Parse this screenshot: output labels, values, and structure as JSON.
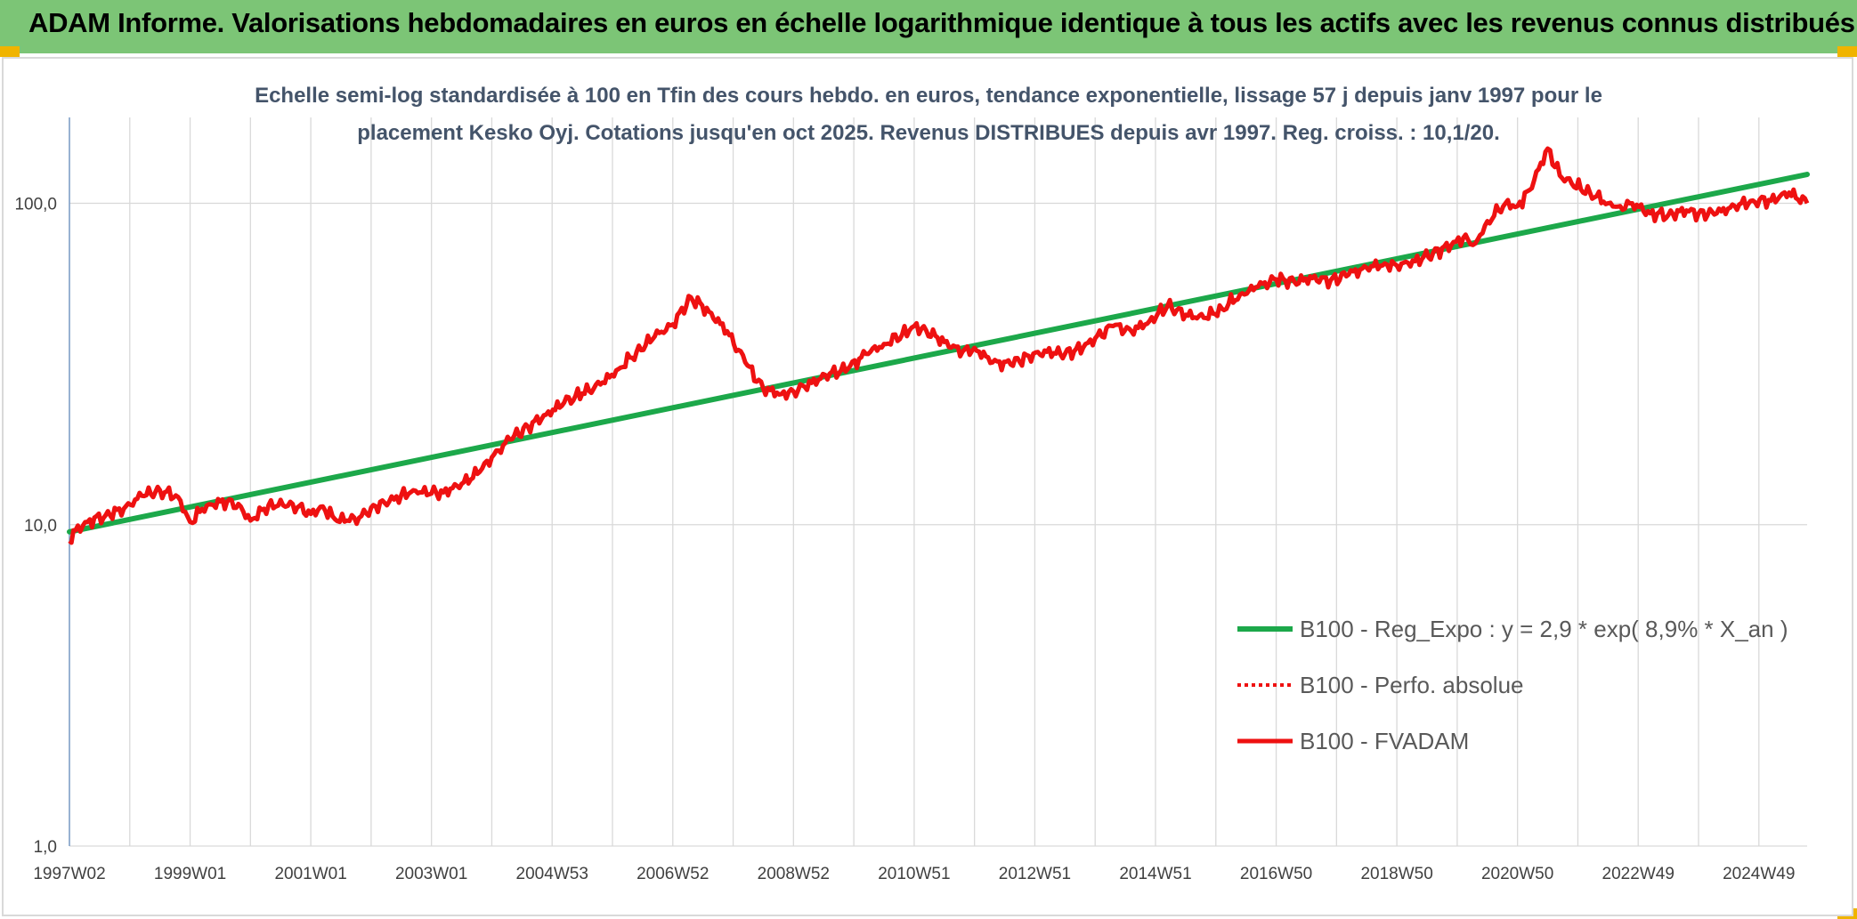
{
  "header": {
    "title": "ADAM Informe. Valorisations hebdomadaires en euros en échelle logarithmique identique à tous les actifs avec les revenus connus distribués"
  },
  "colors": {
    "header_bg": "#7cc576",
    "regression": "#1ca84a",
    "fvadam": "#ee1111",
    "perf_absolue": "#ee1111",
    "title_text": "#44546a"
  },
  "chart_data": {
    "type": "line",
    "title_lines": [
      "Echelle semi-log standardisée à 100 en Tfin des cours hebdo. en euros, tendance exponentielle, lissage 57 j depuis janv 1997 pour le",
      "placement Kesko Oyj. Cotations jusqu'en oct 2025. Revenus DISTRIBUES depuis avr 1997. Reg. croiss. : 10,1/20."
    ],
    "y_scale": "log",
    "ylim": [
      1,
      185
    ],
    "y_ticks": [
      {
        "value": 1,
        "label": "1,0"
      },
      {
        "value": 10,
        "label": "10,0"
      },
      {
        "value": 100,
        "label": "100,0"
      }
    ],
    "xlim": [
      1997.0,
      2025.8
    ],
    "x_ticks": [
      {
        "label": "1997W02",
        "x": 1997.0
      },
      {
        "label": "1999W01",
        "x": 1999.0
      },
      {
        "label": "2001W01",
        "x": 2001.0
      },
      {
        "label": "2003W01",
        "x": 2003.0
      },
      {
        "label": "2004W53",
        "x": 2005.0
      },
      {
        "label": "2006W52",
        "x": 2007.0
      },
      {
        "label": "2008W52",
        "x": 2009.0
      },
      {
        "label": "2010W51",
        "x": 2011.0
      },
      {
        "label": "2012W51",
        "x": 2013.0
      },
      {
        "label": "2014W51",
        "x": 2015.0
      },
      {
        "label": "2016W50",
        "x": 2017.0
      },
      {
        "label": "2018W50",
        "x": 2019.0
      },
      {
        "label": "2020W50",
        "x": 2021.0
      },
      {
        "label": "2022W49",
        "x": 2023.0
      },
      {
        "label": "2024W49",
        "x": 2025.0
      }
    ],
    "legend_position": "right",
    "grid": true,
    "series": [
      {
        "name": "B100 - Reg_Expo : y = 2,9 * exp( 8,9% *  X_an )",
        "style": "solid",
        "x": [
          1997.0,
          2025.8
        ],
        "y": [
          9.5,
          123
        ]
      },
      {
        "name": "B100 - Perfo. absolue",
        "style": "dotted",
        "x": [],
        "y": []
      },
      {
        "name": "B100 - FVADAM",
        "style": "solid",
        "x": [
          1997.0,
          1997.1,
          1997.3,
          1997.6,
          1997.9,
          1998.2,
          1998.5,
          1998.8,
          1999.0,
          1999.2,
          1999.5,
          1999.8,
          2000.0,
          2000.3,
          2000.7,
          2001.0,
          2001.2,
          2001.4,
          2001.6,
          2001.8,
          2002.0,
          2002.3,
          2002.7,
          2003.0,
          2003.2,
          2003.5,
          2003.8,
          2004.0,
          2004.3,
          2004.6,
          2004.9,
          2005.2,
          2005.5,
          2005.8,
          2006.1,
          2006.4,
          2006.7,
          2007.0,
          2007.3,
          2007.6,
          2007.9,
          2008.2,
          2008.5,
          2008.8,
          2009.0,
          2009.3,
          2009.6,
          2009.9,
          2010.2,
          2010.5,
          2010.8,
          2011.0,
          2011.2,
          2011.5,
          2011.8,
          2012.0,
          2012.3,
          2012.6,
          2012.9,
          2013.2,
          2013.5,
          2013.8,
          2014.0,
          2014.3,
          2014.6,
          2014.9,
          2015.2,
          2015.5,
          2015.8,
          2016.1,
          2016.4,
          2016.7,
          2017.0,
          2017.3,
          2017.6,
          2017.9,
          2018.2,
          2018.5,
          2018.8,
          2019.0,
          2019.3,
          2019.6,
          2019.9,
          2020.1,
          2020.3,
          2020.5,
          2020.8,
          2021.0,
          2021.2,
          2021.5,
          2021.7,
          2021.9,
          2022.2,
          2022.5,
          2022.7,
          2022.9,
          2023.2,
          2023.5,
          2023.8,
          2024.0,
          2024.3,
          2024.6,
          2024.9,
          2025.2,
          2025.5,
          2025.8
        ],
        "y": [
          8.9,
          9.6,
          10.2,
          10.7,
          11.2,
          12.3,
          12.8,
          12.2,
          10.2,
          11.2,
          11.8,
          11.6,
          10.3,
          11.5,
          11.6,
          10.8,
          11.4,
          10.4,
          10.3,
          10.5,
          11.3,
          11.8,
          12.8,
          12.5,
          12.6,
          13.4,
          14.6,
          16.2,
          18.4,
          20.2,
          22.0,
          24.0,
          25.6,
          27.3,
          30.5,
          34.5,
          38.5,
          42.0,
          51.0,
          46.0,
          40.0,
          32.0,
          26.5,
          25.5,
          26.0,
          27.6,
          29.5,
          30.5,
          34.0,
          36.5,
          39.0,
          41.5,
          40.2,
          37.0,
          34.5,
          35.5,
          32.0,
          31.5,
          33.5,
          34.5,
          34.0,
          35.5,
          38.0,
          41.5,
          40.0,
          43.0,
          48.0,
          45.0,
          44.0,
          47.0,
          52.0,
          55.0,
          58.0,
          57.0,
          58.5,
          57.5,
          60.0,
          63.0,
          65.0,
          64.0,
          66.0,
          70.0,
          74.0,
          78.0,
          75.0,
          88.0,
          100.0,
          98.0,
          110.0,
          148.0,
          122.0,
          115.0,
          108.0,
          100.0,
          98.0,
          100.0,
          93.0,
          92.0,
          95.0,
          93.0,
          93.0,
          98.0,
          102.0,
          102.0,
          108.0,
          100.0
        ]
      }
    ]
  }
}
